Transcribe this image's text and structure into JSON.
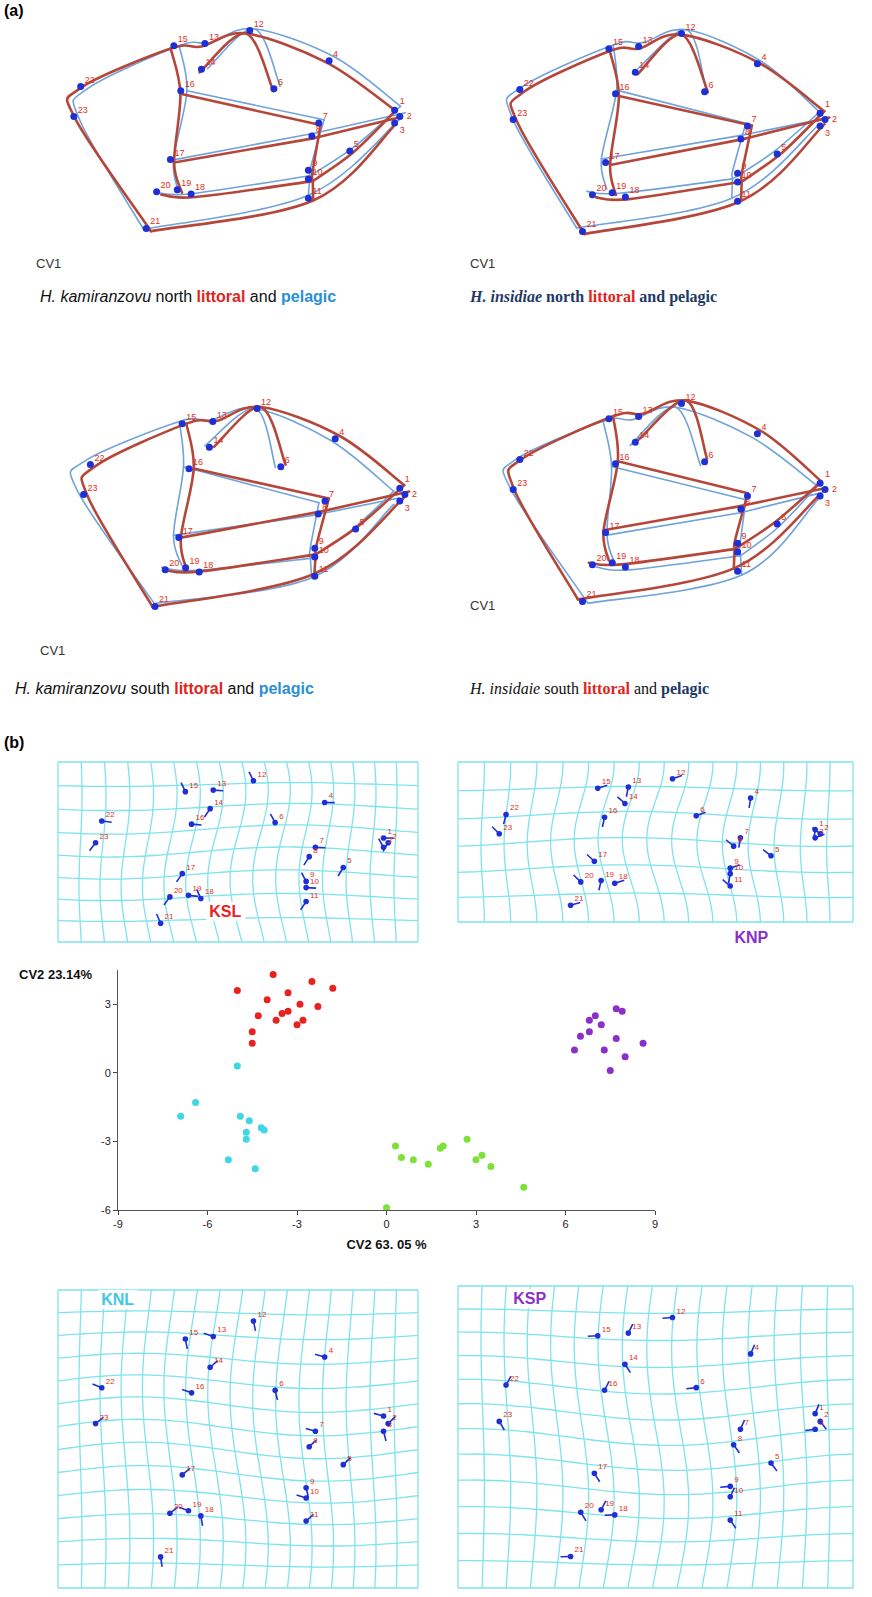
{
  "figure": {
    "landmarks": [
      "1",
      "2",
      "3",
      "4",
      "5",
      "6",
      "7",
      "8",
      "9",
      "10",
      "11",
      "12",
      "13",
      "14",
      "15",
      "16",
      "17",
      "18",
      "19",
      "20",
      "21",
      "22",
      "23"
    ],
    "panel_a": {
      "label": "(a)",
      "littoral_color": "#b5473a",
      "pelagic_color": "#6fa3da",
      "diagrams": [
        {
          "axis_label": "CV1",
          "font": "sans",
          "caption": [
            {
              "text": "H. kamiranzovu",
              "italic": true
            },
            {
              "text": "north"
            },
            {
              "text": "littoral",
              "color": "#e0241b",
              "bold": true
            },
            {
              "text": "and"
            },
            {
              "text": "pelagic",
              "color": "#2b8fd6",
              "bold": true
            }
          ]
        },
        {
          "axis_label": "CV1",
          "font": "serif",
          "caption": [
            {
              "text": "H. insidiae",
              "italic": true,
              "bold": true,
              "color": "#1f3966"
            },
            {
              "text": "north",
              "bold": true,
              "color": "#1f3966"
            },
            {
              "text": "littoral",
              "color": "#e0241b",
              "bold": true
            },
            {
              "text": "and",
              "bold": true,
              "color": "#1f3966"
            },
            {
              "text": "pelagic",
              "bold": true,
              "color": "#1f3966"
            }
          ]
        },
        {
          "axis_label": "CV1",
          "font": "sans",
          "caption": [
            {
              "text": "H. kamiranzovu",
              "italic": true
            },
            {
              "text": "south"
            },
            {
              "text": "littoral",
              "color": "#e0241b",
              "bold": true
            },
            {
              "text": "and"
            },
            {
              "text": "pelagic",
              "color": "#2b8fd6",
              "bold": true
            }
          ]
        },
        {
          "axis_label": "CV1",
          "font": "serif",
          "caption": [
            {
              "text": "H. insidaie",
              "italic": true
            },
            {
              "text": "south"
            },
            {
              "text": "littoral",
              "color": "#e0241b",
              "bold": true
            },
            {
              "text": "and"
            },
            {
              "text": "pelagic",
              "bold": true,
              "color": "#1f3966"
            }
          ]
        }
      ]
    },
    "panel_b": {
      "label": "(b)",
      "grids": [
        {
          "label": "KSL",
          "color": "#e8231f"
        },
        {
          "label": "KNP",
          "color": "#8b2fc9"
        },
        {
          "label": "KNL",
          "color": "#3fc9e0"
        },
        {
          "label": "KSP",
          "color": "#8b2fc9"
        }
      ]
    }
  },
  "chart_data": {
    "type": "scatter",
    "xlabel": "CV2 63. 05 %",
    "ylabel": "CV2 23.14%",
    "xlim": [
      -9,
      9
    ],
    "ylim": [
      -6,
      4.5
    ],
    "xticks": [
      -9,
      -6,
      -3,
      0,
      3,
      6,
      9
    ],
    "yticks": [
      -6,
      -3,
      0,
      3
    ],
    "grid": false,
    "marker": "circle",
    "series": [
      {
        "color": "#e8231f",
        "x": [
          -3.8,
          -2.5,
          -1.8,
          -5.0,
          -3.3,
          -4.0,
          -2.9,
          -3.5,
          -2.3,
          -4.3,
          -3.7,
          -3.0,
          -2.8,
          -4.5,
          -4.5,
          -3.3
        ],
        "y": [
          4.3,
          4.0,
          3.7,
          3.6,
          3.5,
          3.2,
          3.0,
          2.6,
          2.9,
          2.5,
          2.3,
          2.1,
          2.3,
          1.8,
          1.3,
          2.7
        ]
      },
      {
        "color": "#3fd6e6",
        "x": [
          -5.0,
          -6.4,
          -6.9,
          -4.9,
          -4.6,
          -4.2,
          -4.1,
          -4.7,
          -4.7,
          -5.3,
          -4.4
        ],
        "y": [
          0.3,
          -1.3,
          -1.9,
          -1.9,
          -2.1,
          -2.4,
          -2.5,
          -2.6,
          -2.9,
          -3.8,
          -4.2
        ]
      },
      {
        "color": "#7ee03b",
        "x": [
          0.3,
          0.5,
          0.9,
          1.8,
          2.7,
          3.0,
          3.2,
          1.4,
          3.5,
          4.6,
          0.0,
          1.9
        ],
        "y": [
          -3.2,
          -3.7,
          -3.8,
          -3.3,
          -2.9,
          -3.8,
          -3.6,
          -4.0,
          -4.1,
          -5.0,
          -5.9,
          -3.2
        ]
      },
      {
        "color": "#8b2fc9",
        "x": [
          6.3,
          6.5,
          6.8,
          7.0,
          6.8,
          7.2,
          7.7,
          7.9,
          7.3,
          7.7,
          8.0,
          8.6,
          7.5
        ],
        "y": [
          1.0,
          1.6,
          2.3,
          2.5,
          1.8,
          2.1,
          2.8,
          2.7,
          1.0,
          1.5,
          0.7,
          1.3,
          0.1
        ]
      }
    ]
  }
}
